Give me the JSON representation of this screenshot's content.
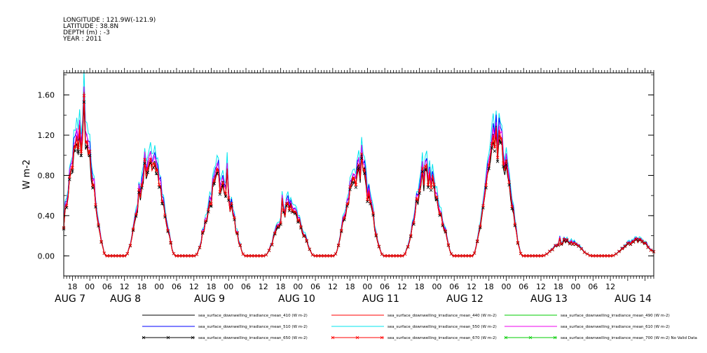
{
  "header": {
    "lines": [
      "LONGITUDE : 121.9W(-121.9)",
      "LATITUDE : 38.8N",
      "DEPTH (m) : -3",
      "YEAR : 2011"
    ]
  },
  "chart_data": {
    "type": "line",
    "ylabel": "W m-2",
    "ylim": [
      -0.2,
      1.82
    ],
    "yticks": [
      0.0,
      0.4,
      0.8,
      1.2,
      1.6
    ],
    "ytick_labels": [
      "0.00",
      "0.40",
      "0.80",
      "1.20",
      "1.60"
    ],
    "xlim_hours": [
      -9,
      195
    ],
    "xtick_labels": [
      "18",
      "00",
      "06",
      "12",
      "18",
      "00",
      "06",
      "12",
      "18",
      "00",
      "06",
      "12",
      "18",
      "00",
      "06",
      "12",
      "18",
      "00",
      "06",
      "12",
      "18",
      "00",
      "06",
      "12",
      "18",
      "00",
      "06",
      "12",
      "18",
      "00",
      "06",
      "12"
    ],
    "date_labels": [
      "AUG 7",
      "AUG 8",
      "AUG 9",
      "AUG 10",
      "AUG 11",
      "AUG 12",
      "AUG 13",
      "AUG 14"
    ],
    "daily_peaks": [
      1.2,
      0.95,
      0.75,
      0.48,
      0.85,
      0.8,
      1.12,
      0.15
    ],
    "series": [
      {
        "name": "sea_surface_downwelling_irradiance_mean_410 (W m-2)",
        "color": "#000000",
        "marker": "none",
        "scale": 1.0
      },
      {
        "name": "sea_surface_downwelling_irradiance_mean_440 (W m-2)",
        "color": "#ff0000",
        "marker": "none",
        "scale": 1.0
      },
      {
        "name": "sea_surface_downwelling_irradiance_mean_490 (W m-2)",
        "color": "#00cc00",
        "marker": "none",
        "scale": 1.0
      },
      {
        "name": "sea_surface_downwelling_irradiance_mean_510 (W m-2)",
        "color": "#0000ff",
        "marker": "none",
        "scale": 1.08
      },
      {
        "name": "sea_surface_downwelling_irradiance_mean_550 (W m-2)",
        "color": "#00e5ee",
        "marker": "none",
        "scale": 1.15
      },
      {
        "name": "sea_surface_downwelling_irradiance_mean_610 (W m-2)",
        "color": "#ee00ee",
        "marker": "none",
        "scale": 1.06
      },
      {
        "name": "sea_surface_downwelling_irradiance_mean_650 (W m-2)",
        "color": "#000000",
        "marker": "x",
        "scale": 0.96
      },
      {
        "name": "sea_surface_downwelling_irradiance_mean_670 (W m-2)",
        "color": "#ff0000",
        "marker": "x",
        "scale": 1.0
      },
      {
        "name": "sea_surface_downwelling_irradiance_mean_700 (W m-2) No Valid Data",
        "color": "#00cc00",
        "marker": "x",
        "scale": 0
      }
    ]
  }
}
